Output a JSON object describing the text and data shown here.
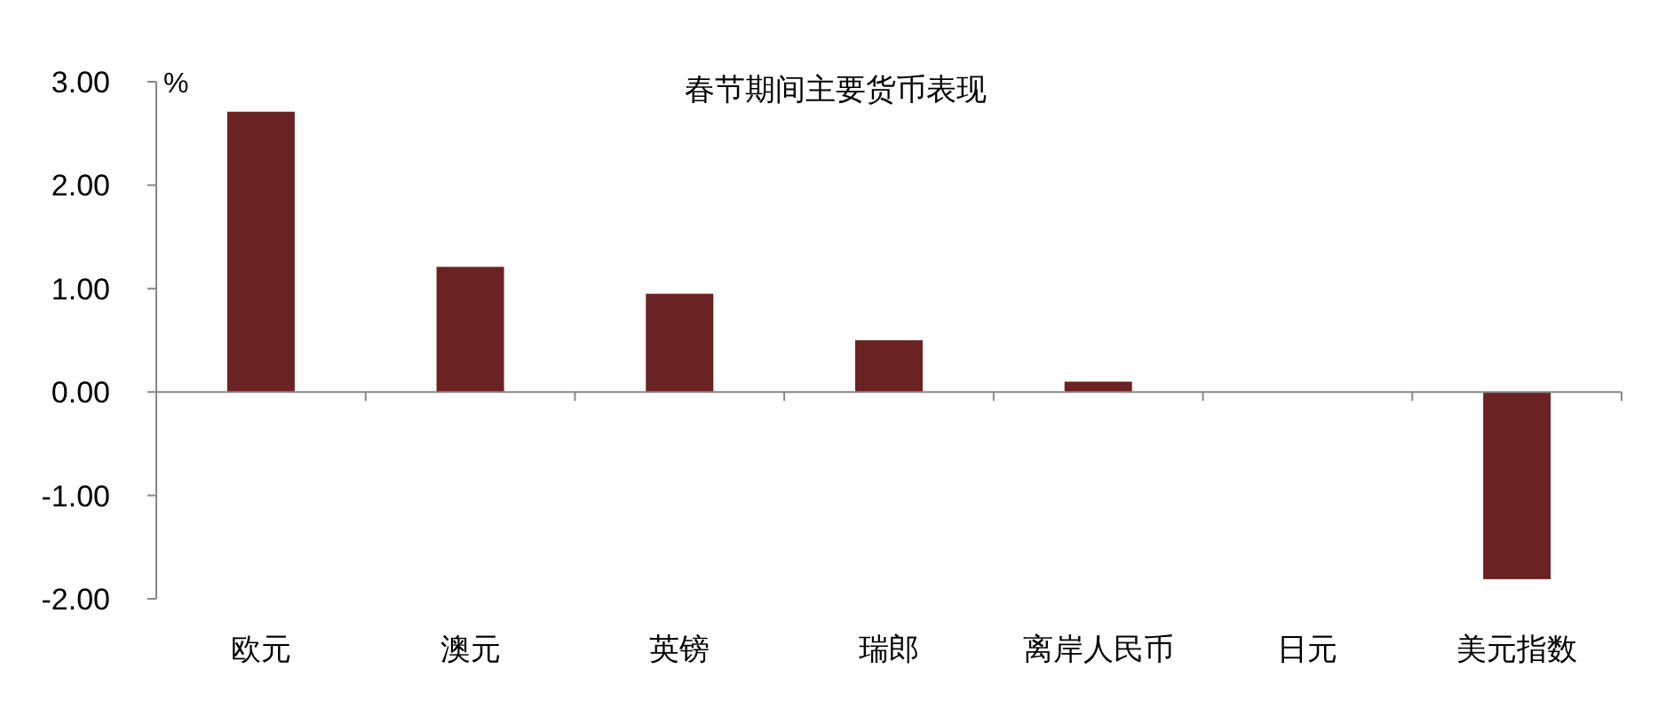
{
  "chart_data": {
    "type": "bar",
    "title": "春节期间主要货币表现",
    "ylabel": "%",
    "categories": [
      "欧元",
      "澳元",
      "英镑",
      "瑞郎",
      "离岸人民币",
      "日元",
      "美元指数"
    ],
    "values": [
      2.71,
      1.21,
      0.95,
      0.5,
      0.1,
      0,
      -1.81
    ],
    "color": "#6b2223",
    "ylim": [
      -2,
      3
    ],
    "yticks": [
      {
        "value": -2,
        "label": "-2.00"
      },
      {
        "value": -1,
        "label": "-1.00"
      },
      {
        "value": 0,
        "label": "0.00"
      },
      {
        "value": 1,
        "label": "1.00"
      },
      {
        "value": 2,
        "label": "2.00"
      },
      {
        "value": 3,
        "label": "3.00"
      }
    ]
  }
}
